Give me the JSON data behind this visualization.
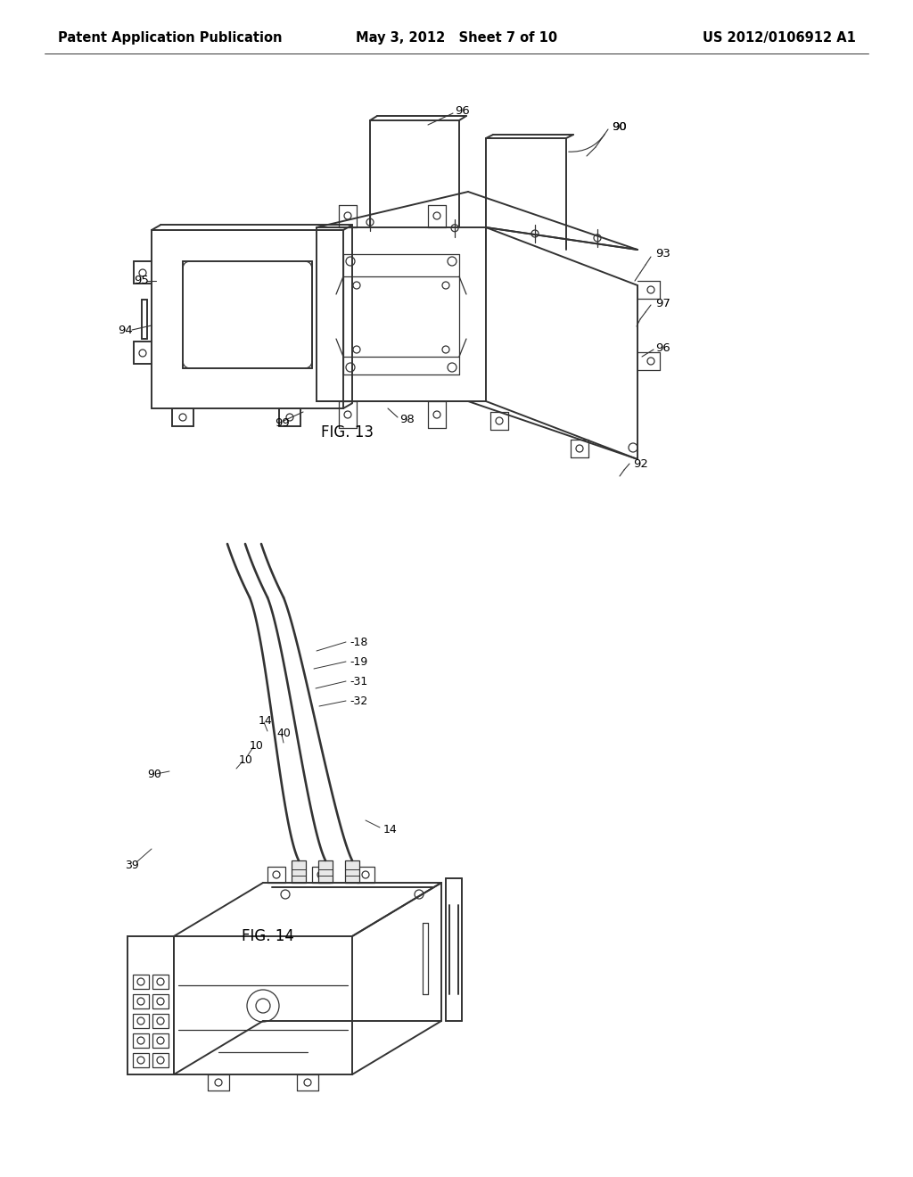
{
  "background_color": "#ffffff",
  "header": {
    "left_text": "Patent Application Publication",
    "center_text": "May 3, 2012   Sheet 7 of 10",
    "right_text": "US 2012/0106912 A1",
    "fontsize": 10.5
  },
  "line_color": "#333333",
  "line_width": 1.4,
  "thin_lw": 0.9,
  "fig13_label": "FIG. 13",
  "fig14_label": "FIG. 14",
  "annot_fs": 9.5
}
